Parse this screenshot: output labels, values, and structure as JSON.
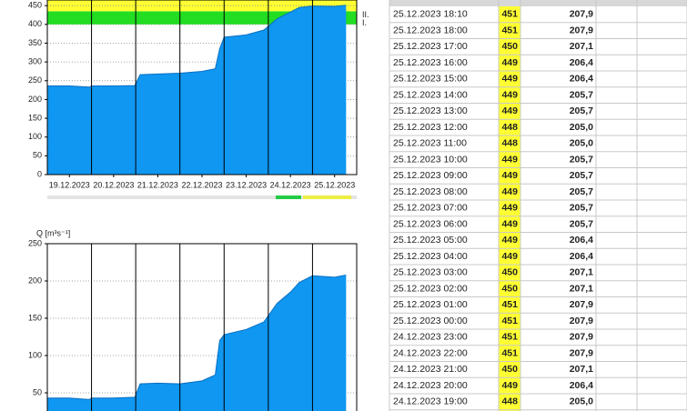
{
  "chart_data": [
    {
      "type": "area",
      "color": "#0f97f2",
      "line_color": "#0a6fc0",
      "xlim": [
        0,
        7
      ],
      "ylim": [
        0,
        465
      ],
      "yticks": [
        0,
        50,
        100,
        150,
        200,
        250,
        300,
        350,
        400,
        450
      ],
      "xticks": [
        {
          "value": 0.5,
          "label": "19.12.2023"
        },
        {
          "value": 1.5,
          "label": "20.12.2023"
        },
        {
          "value": 2.5,
          "label": "21.12.2023"
        },
        {
          "value": 3.5,
          "label": "22.12.2023"
        },
        {
          "value": 4.5,
          "label": "23.12.2023"
        },
        {
          "value": 5.5,
          "label": "24.12.2023"
        },
        {
          "value": 6.5,
          "label": "25.12.2023"
        }
      ],
      "xgrid": [
        1,
        2,
        3,
        4,
        5,
        6
      ],
      "levels": [
        {
          "label": "I.",
          "value": 400,
          "color": "#22dd22"
        },
        {
          "label": "II.",
          "value": 435,
          "color": "#ffff33"
        }
      ],
      "x": [
        0,
        0.5,
        0.95,
        1.0,
        1.5,
        1.98,
        2.1,
        2.5,
        3.0,
        3.5,
        3.8,
        3.9,
        4.0,
        4.5,
        4.9,
        5.2,
        5.5,
        5.7,
        6.0,
        6.5,
        6.76
      ],
      "values": [
        236,
        236,
        233,
        236,
        236,
        237,
        266,
        268,
        270,
        275,
        282,
        335,
        366,
        372,
        385,
        415,
        433,
        445,
        449,
        448,
        451
      ]
    },
    {
      "type": "area",
      "color": "#0f97f2",
      "line_color": "#0a6fc0",
      "ylabel": "Q [m³s⁻¹]",
      "xlim": [
        0,
        7
      ],
      "ylim": [
        0,
        250
      ],
      "yticks": [
        50,
        100,
        150,
        200,
        250
      ],
      "xgrid": [
        1,
        2,
        3,
        4,
        5,
        6
      ],
      "x": [
        0,
        0.5,
        0.95,
        1.0,
        1.5,
        1.98,
        2.1,
        2.5,
        3.0,
        3.5,
        3.8,
        3.9,
        4.0,
        4.5,
        4.9,
        5.2,
        5.5,
        5.7,
        6.0,
        6.5,
        6.76
      ],
      "values": [
        43,
        43,
        41,
        43,
        43,
        44,
        62,
        63,
        62,
        66,
        74,
        120,
        128,
        135,
        145,
        170,
        185,
        198,
        207,
        205,
        208
      ]
    }
  ],
  "table": {
    "rows": [
      [
        "25.12.2023 18:10",
        451,
        "207,9"
      ],
      [
        "25.12.2023 18:00",
        451,
        "207,9"
      ],
      [
        "25.12.2023 17:00",
        450,
        "207,1"
      ],
      [
        "25.12.2023 16:00",
        449,
        "206,4"
      ],
      [
        "25.12.2023 15:00",
        449,
        "206,4"
      ],
      [
        "25.12.2023 14:00",
        449,
        "205,7"
      ],
      [
        "25.12.2023 13:00",
        449,
        "205,7"
      ],
      [
        "25.12.2023 12:00",
        448,
        "205,0"
      ],
      [
        "25.12.2023 11:00",
        448,
        "205,0"
      ],
      [
        "25.12.2023 10:00",
        449,
        "205,7"
      ],
      [
        "25.12.2023 09:00",
        449,
        "205,7"
      ],
      [
        "25.12.2023 08:00",
        449,
        "205,7"
      ],
      [
        "25.12.2023 07:00",
        449,
        "205,7"
      ],
      [
        "25.12.2023 06:00",
        449,
        "205,7"
      ],
      [
        "25.12.2023 05:00",
        449,
        "206,4"
      ],
      [
        "25.12.2023 04:00",
        449,
        "206,4"
      ],
      [
        "25.12.2023 03:00",
        450,
        "207,1"
      ],
      [
        "25.12.2023 02:00",
        450,
        "207,1"
      ],
      [
        "25.12.2023 01:00",
        451,
        "207,9"
      ],
      [
        "25.12.2023 00:00",
        451,
        "207,9"
      ],
      [
        "24.12.2023 23:00",
        451,
        "207,9"
      ],
      [
        "24.12.2023 22:00",
        451,
        "207,9"
      ],
      [
        "24.12.2023 21:00",
        450,
        "207,1"
      ],
      [
        "24.12.2023 20:00",
        449,
        "206,4"
      ],
      [
        "24.12.2023 19:00",
        448,
        "205,0"
      ]
    ]
  }
}
